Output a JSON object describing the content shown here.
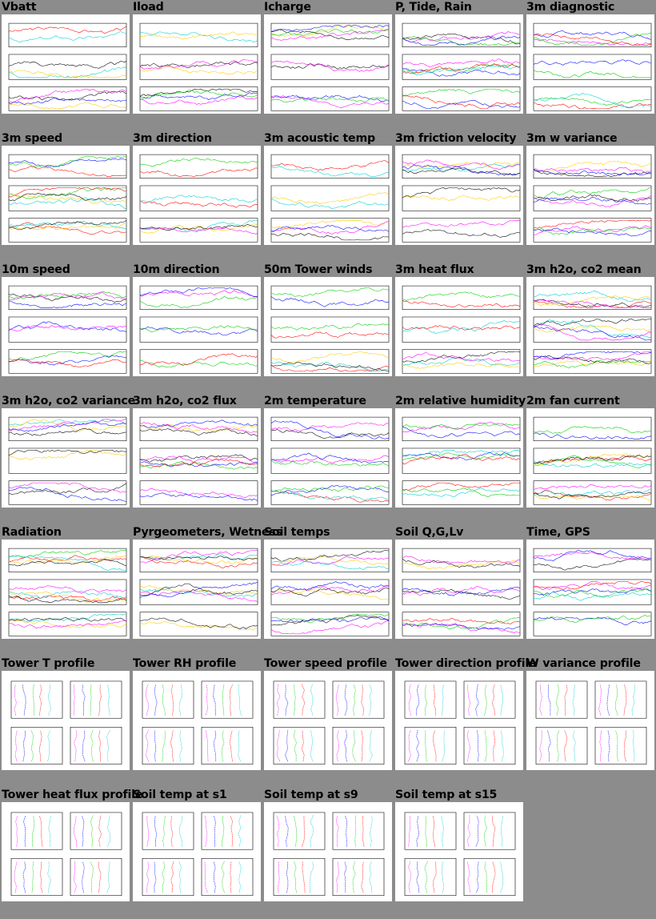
{
  "thumbnails": [
    {
      "title": "Vbatt"
    },
    {
      "title": "Iload"
    },
    {
      "title": "Icharge"
    },
    {
      "title": "P, Tide, Rain"
    },
    {
      "title": "3m diagnostic"
    },
    {
      "title": "3m speed"
    },
    {
      "title": "3m direction"
    },
    {
      "title": "3m acoustic temp"
    },
    {
      "title": "3m friction velocity"
    },
    {
      "title": "3m w variance"
    },
    {
      "title": "10m speed"
    },
    {
      "title": "10m direction"
    },
    {
      "title": "50m Tower winds"
    },
    {
      "title": "3m heat flux"
    },
    {
      "title": "3m h2o, co2 mean"
    },
    {
      "title": "3m h2o, co2 variance"
    },
    {
      "title": "3m h2o, co2 flux"
    },
    {
      "title": "2m temperature"
    },
    {
      "title": "2m relative humidity"
    },
    {
      "title": "2m fan current"
    },
    {
      "title": "Radiation"
    },
    {
      "title": "Pyrgeometers, Wetness"
    },
    {
      "title": "Soil temps"
    },
    {
      "title": "Soil Q,G,Lv"
    },
    {
      "title": "Time, GPS"
    },
    {
      "title": "Tower T profile"
    },
    {
      "title": "Tower RH profile"
    },
    {
      "title": "Tower speed profile"
    },
    {
      "title": "Tower direction profile"
    },
    {
      "title": "W variance profile"
    },
    {
      "title": "Tower heat flux profile"
    },
    {
      "title": "Soil temp at s1"
    },
    {
      "title": "Soil temp at s9"
    },
    {
      "title": "Soil temp at s15"
    }
  ],
  "colors": {
    "background": "#8c8c8c",
    "thumbnail": "#ffffff",
    "series": [
      "#ff00ff",
      "#0000ff",
      "#00cc00",
      "#ff0000",
      "#00cccc",
      "#ffcc00",
      "#000000"
    ]
  }
}
